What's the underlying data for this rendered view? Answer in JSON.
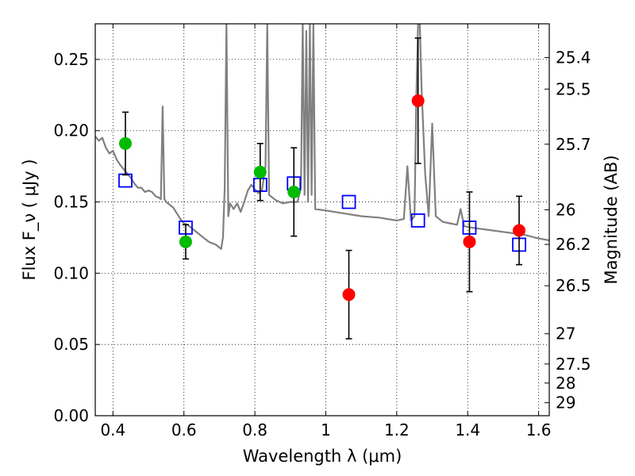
{
  "chart_data": {
    "type": "scatter",
    "xlabel": "Wavelength  λ (μm)",
    "ylabel": "Flux  F_ν  ( μJy )",
    "ylabel_right": "Magnitude (AB)",
    "xlim": [
      0.35,
      1.63
    ],
    "ylim": [
      0.0,
      0.275
    ],
    "grid": true,
    "x_ticks": [
      0.4,
      0.6,
      0.8,
      1.0,
      1.2,
      1.4,
      1.6
    ],
    "x_tick_labels": [
      "0.4",
      "0.6",
      "0.8",
      "1",
      "1.2",
      "1.4",
      "1.6"
    ],
    "y_ticks": [
      0.0,
      0.05,
      0.1,
      0.15,
      0.2,
      0.25
    ],
    "y_tick_labels": [
      "0.00",
      "0.05",
      "0.10",
      "0.15",
      "0.20",
      "0.25"
    ],
    "right_ticks": [
      {
        "flux": 0.2513,
        "label": "25.4"
      },
      {
        "flux": 0.2292,
        "label": "25.5"
      },
      {
        "flux": 0.1905,
        "label": "25.7"
      },
      {
        "flux": 0.1445,
        "label": "26"
      },
      {
        "flux": 0.1202,
        "label": "26.2"
      },
      {
        "flux": 0.0912,
        "label": "26.5"
      },
      {
        "flux": 0.0575,
        "label": "27"
      },
      {
        "flux": 0.0363,
        "label": "27.5"
      },
      {
        "flux": 0.0229,
        "label": "28"
      },
      {
        "flux": 0.0091,
        "label": "29"
      }
    ],
    "series": [
      {
        "kind": "spectrum",
        "color": "#808080",
        "points": [
          [
            0.35,
            0.196
          ],
          [
            0.36,
            0.193
          ],
          [
            0.37,
            0.195
          ],
          [
            0.38,
            0.188
          ],
          [
            0.39,
            0.184
          ],
          [
            0.4,
            0.186
          ],
          [
            0.41,
            0.18
          ],
          [
            0.42,
            0.176
          ],
          [
            0.43,
            0.173
          ],
          [
            0.44,
            0.17
          ],
          [
            0.45,
            0.167
          ],
          [
            0.46,
            0.163
          ],
          [
            0.47,
            0.16
          ],
          [
            0.48,
            0.16
          ],
          [
            0.49,
            0.157
          ],
          [
            0.5,
            0.158
          ],
          [
            0.51,
            0.157
          ],
          [
            0.52,
            0.154
          ],
          [
            0.53,
            0.153
          ],
          [
            0.535,
            0.152
          ],
          [
            0.54,
            0.217
          ],
          [
            0.545,
            0.152
          ],
          [
            0.55,
            0.15
          ],
          [
            0.56,
            0.148
          ],
          [
            0.57,
            0.146
          ],
          [
            0.58,
            0.142
          ],
          [
            0.59,
            0.138
          ],
          [
            0.6,
            0.135
          ],
          [
            0.61,
            0.134
          ],
          [
            0.62,
            0.132
          ],
          [
            0.63,
            0.13
          ],
          [
            0.64,
            0.128
          ],
          [
            0.65,
            0.126
          ],
          [
            0.66,
            0.124
          ],
          [
            0.67,
            0.122
          ],
          [
            0.68,
            0.121
          ],
          [
            0.69,
            0.12
          ],
          [
            0.7,
            0.118
          ],
          [
            0.705,
            0.117
          ],
          [
            0.71,
            0.125
          ],
          [
            0.715,
            0.16
          ],
          [
            0.72,
            0.275
          ],
          [
            0.725,
            0.14
          ],
          [
            0.73,
            0.149
          ],
          [
            0.74,
            0.145
          ],
          [
            0.75,
            0.149
          ],
          [
            0.76,
            0.143
          ],
          [
            0.77,
            0.15
          ],
          [
            0.78,
            0.158
          ],
          [
            0.79,
            0.162
          ],
          [
            0.8,
            0.159
          ],
          [
            0.81,
            0.156
          ],
          [
            0.82,
            0.158
          ],
          [
            0.83,
            0.175
          ],
          [
            0.835,
            0.275
          ],
          [
            0.84,
            0.155
          ],
          [
            0.86,
            0.151
          ],
          [
            0.88,
            0.149
          ],
          [
            0.9,
            0.15
          ],
          [
            0.92,
            0.15
          ],
          [
            0.93,
            0.16
          ],
          [
            0.935,
            0.275
          ],
          [
            0.94,
            0.155
          ],
          [
            0.945,
            0.27
          ],
          [
            0.95,
            0.15
          ],
          [
            0.955,
            0.275
          ],
          [
            0.96,
            0.155
          ],
          [
            0.965,
            0.275
          ],
          [
            0.97,
            0.145
          ],
          [
            1.0,
            0.144
          ],
          [
            1.05,
            0.142
          ],
          [
            1.1,
            0.14
          ],
          [
            1.15,
            0.139
          ],
          [
            1.2,
            0.137
          ],
          [
            1.22,
            0.138
          ],
          [
            1.23,
            0.175
          ],
          [
            1.24,
            0.137
          ],
          [
            1.25,
            0.14
          ],
          [
            1.255,
            0.22
          ],
          [
            1.26,
            0.275
          ],
          [
            1.265,
            0.275
          ],
          [
            1.27,
            0.23
          ],
          [
            1.28,
            0.17
          ],
          [
            1.29,
            0.14
          ],
          [
            1.3,
            0.205
          ],
          [
            1.31,
            0.14
          ],
          [
            1.33,
            0.136
          ],
          [
            1.35,
            0.135
          ],
          [
            1.37,
            0.134
          ],
          [
            1.38,
            0.145
          ],
          [
            1.39,
            0.133
          ],
          [
            1.41,
            0.132
          ],
          [
            1.44,
            0.131
          ],
          [
            1.47,
            0.13
          ],
          [
            1.5,
            0.129
          ],
          [
            1.53,
            0.128
          ],
          [
            1.56,
            0.127
          ],
          [
            1.59,
            0.125
          ],
          [
            1.61,
            0.124
          ],
          [
            1.63,
            0.123
          ]
        ]
      },
      {
        "kind": "model-boxes",
        "color": "#0000ff",
        "x": [
          0.435,
          0.605,
          0.815,
          0.91,
          1.065,
          1.26,
          1.405,
          1.545
        ],
        "y": [
          0.165,
          0.132,
          0.162,
          0.163,
          0.15,
          0.137,
          0.132,
          0.12
        ]
      },
      {
        "kind": "obs-green",
        "color": "#00bb00",
        "x": [
          0.435,
          0.605,
          0.815,
          0.91
        ],
        "y": [
          0.191,
          0.122,
          0.171,
          0.157
        ],
        "err": [
          0.022,
          0.012,
          0.02,
          0.031
        ]
      },
      {
        "kind": "obs-red",
        "color": "#ff0000",
        "x": [
          1.065,
          1.26,
          1.405,
          1.545
        ],
        "y": [
          0.085,
          0.221,
          0.122,
          0.13
        ],
        "err": [
          0.031,
          0.044,
          0.035,
          0.024
        ]
      }
    ]
  }
}
